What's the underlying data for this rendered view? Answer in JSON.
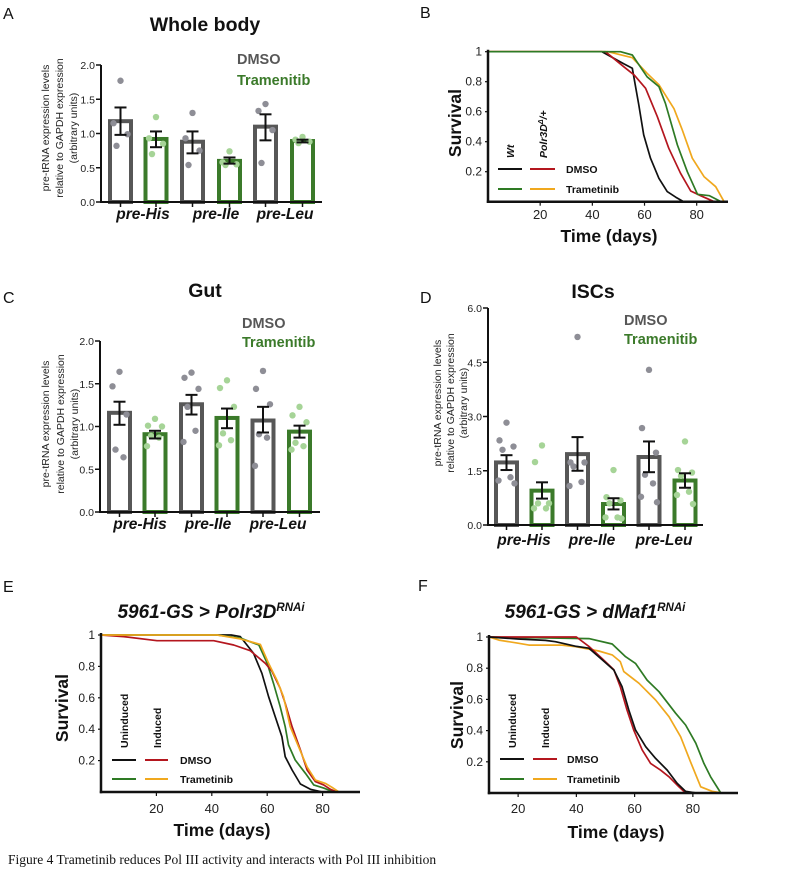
{
  "figure": {
    "caption": "Figure 4 Trametinib reduces Pol III activity and interacts with Pol III inhibition"
  },
  "chart_data": [
    {
      "panel": "A",
      "label": "A",
      "type": "bar",
      "title": "Whole body",
      "xlabel": "",
      "ylabel": [
        "pre-tRNA expression levels",
        "relative to GAPDH expression",
        "(arbitrary units)"
      ],
      "ylim": [
        0,
        2.0
      ],
      "yticks": [
        0,
        0.5,
        1.0,
        1.5,
        2.0
      ],
      "ytick_labels": [
        "0.0",
        "0.5",
        "1.0",
        "1.5",
        "2.0"
      ],
      "categories": [
        "pre-His",
        "pre-Ile",
        "pre-Leu"
      ],
      "legend_position": "top-right",
      "grid": false,
      "series": [
        {
          "name": "DMSO",
          "color": "#575757",
          "point_color": "#8e8e96",
          "values": [
            1.18,
            0.88,
            1.1
          ],
          "error_upper": [
            1.38,
            1.03,
            1.28
          ],
          "error_lower": [
            0.98,
            0.71,
            0.9
          ],
          "points": [
            [
              1.77,
              1.15,
              0.99,
              0.82
            ],
            [
              1.3,
              0.93,
              0.75,
              0.54
            ],
            [
              1.43,
              1.33,
              1.05,
              0.57
            ]
          ]
        },
        {
          "name": "Tramenitib",
          "color": "#3b7a2a",
          "point_color": "#a6d497",
          "values": [
            0.92,
            0.6,
            0.89
          ],
          "error_upper": [
            1.03,
            0.65,
            0.91
          ],
          "error_lower": [
            0.8,
            0.56,
            0.87
          ],
          "points": [
            [
              1.24,
              0.93,
              0.85,
              0.7
            ],
            [
              0.74,
              0.58,
              0.55,
              0.54
            ],
            [
              0.95,
              0.91,
              0.88,
              0.86
            ]
          ]
        }
      ]
    },
    {
      "panel": "B",
      "label": "B",
      "type": "line",
      "title": "",
      "title_superscript": "",
      "xlabel": "Time (days)",
      "ylabel": "Survival",
      "xlim": [
        0,
        92
      ],
      "ylim": [
        0,
        1
      ],
      "xticks": [
        20,
        40,
        60,
        80
      ],
      "xtick_labels": [
        "20",
        "40",
        "60",
        "80"
      ],
      "yticks": [
        0.2,
        0.4,
        0.6,
        0.8,
        1
      ],
      "ytick_labels": [
        "0.2",
        "0.4",
        "0.6",
        "0.8",
        "1"
      ],
      "grid": false,
      "legend": {
        "position": "bottom-left",
        "columns": [
          {
            "text": "Wt",
            "sup": "",
            "suffix": ""
          },
          {
            "text": "Polr3D",
            "sup": "Δ",
            "suffix": "/+"
          }
        ],
        "rows": [
          "DMSO",
          "Trametinib"
        ]
      },
      "series": [
        {
          "name": "Wt DMSO",
          "column": 0,
          "row": 0,
          "color": "#111111",
          "x": [
            0,
            43.7,
            52,
            55.3,
            57.8,
            59.7,
            62.3,
            65.5,
            68.7,
            72,
            75
          ],
          "y": [
            1,
            1,
            0.92,
            0.89,
            0.645,
            0.445,
            0.29,
            0.156,
            0.067,
            0.03,
            0
          ]
        },
        {
          "name": "Polr3D DMSO",
          "column": 1,
          "row": 0,
          "color": "#b4161e",
          "x": [
            0,
            45,
            52,
            56,
            60.4,
            64.9,
            69.3,
            73.8,
            77.7,
            81.5,
            86.7
          ],
          "y": [
            1,
            1,
            0.9,
            0.845,
            0.756,
            0.567,
            0.356,
            0.19,
            0.071,
            0.04,
            0
          ]
        },
        {
          "name": "Polr3D Trametinib",
          "column": 1,
          "row": 1,
          "color": "#f0a81e",
          "x": [
            0,
            46,
            55.3,
            61,
            65.5,
            71.3,
            74.5,
            78.3,
            82.8,
            87.3,
            90.5
          ],
          "y": [
            1,
            1,
            0.96,
            0.856,
            0.78,
            0.62,
            0.478,
            0.29,
            0.167,
            0.1,
            0
          ]
        },
        {
          "name": "Wt Trametinib",
          "column": 0,
          "row": 1,
          "color": "#2e7a24",
          "x": [
            0,
            50.8,
            55.3,
            61,
            65.5,
            68,
            72.6,
            76.4,
            80.3,
            84.9,
            89.4
          ],
          "y": [
            1,
            1,
            0.978,
            0.833,
            0.767,
            0.656,
            0.378,
            0.2,
            0.049,
            0.04,
            0
          ]
        }
      ]
    },
    {
      "panel": "C",
      "label": "C",
      "type": "bar",
      "title": "Gut",
      "xlabel": "",
      "ylabel": [
        "pre-tRNA expression levels",
        "relative to GAPDH expression",
        "(arbitrary units)"
      ],
      "ylim": [
        0,
        2.0
      ],
      "yticks": [
        0,
        0.5,
        1.0,
        1.5,
        2.0
      ],
      "ytick_labels": [
        "0.0",
        "0.5",
        "1.0",
        "1.5",
        "2.0"
      ],
      "categories": [
        "pre-His",
        "pre-Ile",
        "pre-Leu"
      ],
      "legend_position": "top-right",
      "grid": false,
      "series": [
        {
          "name": "DMSO",
          "color": "#575757",
          "point_color": "#8e8e96",
          "values": [
            1.16,
            1.26,
            1.07
          ],
          "error_upper": [
            1.29,
            1.37,
            1.23
          ],
          "error_lower": [
            1.02,
            1.14,
            0.93
          ],
          "points": [
            [
              1.64,
              1.47,
              1.14,
              0.73,
              0.64
            ],
            [
              1.63,
              1.57,
              1.44,
              1.23,
              0.95,
              0.82
            ],
            [
              1.65,
              1.44,
              1.26,
              0.91,
              0.87,
              0.54
            ]
          ]
        },
        {
          "name": "Tramenitib",
          "color": "#3b7a2a",
          "point_color": "#a6d497",
          "values": [
            0.91,
            1.1,
            0.94
          ],
          "error_upper": [
            0.95,
            1.21,
            1.01
          ],
          "error_lower": [
            0.86,
            0.98,
            0.87
          ],
          "points": [
            [
              1.09,
              1.01,
              1.0,
              0.89,
              0.87,
              0.77
            ],
            [
              1.54,
              1.45,
              1.23,
              0.92,
              0.84,
              0.78
            ],
            [
              1.23,
              1.13,
              1.05,
              0.81,
              0.77,
              0.73
            ]
          ]
        }
      ]
    },
    {
      "panel": "D",
      "label": "D",
      "type": "bar",
      "title": "ISCs",
      "xlabel": "",
      "ylabel": [
        "pre-tRNA expression levels",
        "relative to GAPDH expression",
        "(arbitrary units)"
      ],
      "ylim": [
        0,
        6.0
      ],
      "yticks": [
        0,
        1.5,
        3.0,
        4.5,
        6.0
      ],
      "ytick_labels": [
        "0.0",
        "1.5",
        "3.0",
        "4.5",
        "6.0"
      ],
      "categories": [
        "pre-His",
        "pre-Ile",
        "pre-Leu"
      ],
      "legend_position": "top-right",
      "grid": false,
      "series": [
        {
          "name": "DMSO",
          "color": "#575757",
          "point_color": "#8e8e96",
          "values": [
            1.73,
            1.96,
            1.88
          ],
          "error_upper": [
            1.93,
            2.43,
            2.31
          ],
          "error_lower": [
            1.52,
            1.5,
            1.46
          ],
          "points": [
            [
              2.83,
              2.34,
              2.17,
              2.08,
              1.32,
              1.23,
              1.15
            ],
            [
              5.2,
              1.73,
              1.73,
              1.62,
              1.19,
              1.08
            ],
            [
              4.29,
              2.68,
              2.0,
              1.39,
              1.15,
              0.78,
              0.63
            ]
          ]
        },
        {
          "name": "Tramenitib",
          "color": "#3b7a2a",
          "point_color": "#a6d497",
          "values": [
            0.95,
            0.58,
            1.23
          ],
          "error_upper": [
            1.18,
            0.74,
            1.43
          ],
          "error_lower": [
            0.73,
            0.43,
            1.03
          ],
          "points": [
            [
              2.2,
              1.74,
              0.6,
              0.6,
              0.46,
              0.46
            ],
            [
              1.52,
              0.77,
              0.68,
              0.6,
              0.21,
              0.21,
              0.18
            ],
            [
              2.31,
              1.52,
              1.45,
              1.36,
              0.92,
              0.83,
              0.58
            ]
          ]
        }
      ]
    },
    {
      "panel": "E",
      "label": "E",
      "type": "line",
      "title": "5961-GS > Polr3D",
      "title_superscript": "RNAi",
      "xlabel": "Time (days)",
      "ylabel": "Survival",
      "xlim": [
        0,
        93.5
      ],
      "ylim": [
        0,
        1
      ],
      "xticks": [
        20,
        40,
        60,
        80
      ],
      "xtick_labels": [
        "20",
        "40",
        "60",
        "80"
      ],
      "yticks": [
        0.2,
        0.4,
        0.6,
        0.8,
        1
      ],
      "ytick_labels": [
        "0.2",
        "0.4",
        "0.6",
        "0.8",
        "1"
      ],
      "grid": false,
      "legend": {
        "position": "bottom-left",
        "columns": [
          {
            "text": "Uninduced",
            "sup": "",
            "suffix": ""
          },
          {
            "text": "Induced",
            "sup": "",
            "suffix": ""
          }
        ],
        "rows": [
          "DMSO",
          "Trametinib"
        ]
      },
      "series": [
        {
          "name": "Uninduced DMSO",
          "column": 0,
          "row": 0,
          "color": "#111111",
          "x": [
            0,
            47,
            50.3,
            55.1,
            58.1,
            60.5,
            62.9,
            65.3,
            66.5,
            69,
            72,
            75.6,
            79.8
          ],
          "y": [
            1,
            1,
            0.99,
            0.883,
            0.756,
            0.607,
            0.48,
            0.352,
            0.225,
            0.14,
            0.051,
            0.017,
            0
          ]
        },
        {
          "name": "Uninduced Trametinib",
          "column": 0,
          "row": 1,
          "color": "#2e7a24",
          "x": [
            0,
            42,
            50.3,
            57,
            60,
            62.3,
            64.7,
            66.5,
            67.7,
            70.1,
            73.8,
            76.8,
            80.4,
            84
          ],
          "y": [
            1,
            1,
            0.98,
            0.936,
            0.82,
            0.69,
            0.543,
            0.416,
            0.3,
            0.204,
            0.119,
            0.045,
            0.025,
            0
          ]
        },
        {
          "name": "Induced DMSO",
          "column": 1,
          "row": 0,
          "color": "#b4161e",
          "x": [
            0,
            8.2,
            20.2,
            40.7,
            47.9,
            53.9,
            59.3,
            61.7,
            64.7,
            66.5,
            69,
            72,
            74.4,
            77.4,
            80.4,
            82.8,
            85.2
          ],
          "y": [
            1,
            0.99,
            0.964,
            0.964,
            0.936,
            0.9,
            0.82,
            0.77,
            0.66,
            0.565,
            0.416,
            0.268,
            0.14,
            0.066,
            0.045,
            0.017,
            0
          ]
        },
        {
          "name": "Induced Trametinib",
          "column": 1,
          "row": 1,
          "color": "#f0a81e",
          "x": [
            0,
            42,
            50.3,
            57.5,
            60.5,
            63.5,
            65.9,
            68.3,
            71.3,
            74.4,
            77.4,
            81,
            83.4,
            85.9,
            92
          ],
          "y": [
            1,
            1,
            0.975,
            0.94,
            0.82,
            0.713,
            0.607,
            0.416,
            0.289,
            0.16,
            0.076,
            0.055,
            0.03,
            0,
            0
          ]
        }
      ]
    },
    {
      "panel": "F",
      "label": "F",
      "type": "line",
      "title": "5961-GS > dMaf1",
      "title_superscript": "RNAi",
      "xlabel": "Time (days)",
      "ylabel": "Survival",
      "xlim": [
        10,
        95.5
      ],
      "ylim": [
        0,
        1
      ],
      "xticks": [
        20,
        40,
        60,
        80
      ],
      "xtick_labels": [
        "20",
        "40",
        "60",
        "80"
      ],
      "yticks": [
        0.2,
        0.4,
        0.6,
        0.8,
        1
      ],
      "ytick_labels": [
        "0.2",
        "0.4",
        "0.6",
        "0.8",
        "1"
      ],
      "grid": false,
      "legend": {
        "position": "bottom-left",
        "columns": [
          {
            "text": "Uninduced",
            "sup": "",
            "suffix": ""
          },
          {
            "text": "Induced",
            "sup": "",
            "suffix": ""
          }
        ],
        "rows": [
          "DMSO",
          "Trametinib"
        ]
      },
      "series": [
        {
          "name": "Uninduced Trametinib",
          "column": 0,
          "row": 1,
          "color": "#2e7a24",
          "x": [
            10,
            44.3,
            52.3,
            56.9,
            60.3,
            64.3,
            68.4,
            74.1,
            77.5,
            81,
            83.8,
            86.1,
            89.6
          ],
          "y": [
            1,
            0.99,
            0.955,
            0.874,
            0.831,
            0.724,
            0.649,
            0.511,
            0.436,
            0.319,
            0.19,
            0.104,
            0
          ]
        },
        {
          "name": "Induced Trametinib",
          "column": 1,
          "row": 1,
          "color": "#f0a81e",
          "x": [
            10,
            13.4,
            20,
            23.7,
            35.1,
            40,
            47.7,
            52.3,
            55.1,
            56.3,
            61.5,
            67.2,
            71.8,
            75.8,
            79.2,
            82.7,
            86.7,
            89.9
          ],
          "y": [
            1,
            0.98,
            0.96,
            0.948,
            0.948,
            0.937,
            0.91,
            0.885,
            0.842,
            0.778,
            0.703,
            0.596,
            0.489,
            0.361,
            0.2,
            0.04,
            0.01,
            0
          ]
        },
        {
          "name": "Induced DMSO",
          "column": 1,
          "row": 0,
          "color": "#b4161e",
          "x": [
            10,
            40,
            44.3,
            48.9,
            52.9,
            55.1,
            57.4,
            59.7,
            62.6,
            65.5,
            68.9,
            71.8,
            75.2,
            77.5
          ],
          "y": [
            1,
            1,
            0.94,
            0.86,
            0.79,
            0.681,
            0.532,
            0.404,
            0.276,
            0.19,
            0.147,
            0.104,
            0.04,
            0
          ]
        },
        {
          "name": "Uninduced DMSO",
          "column": 0,
          "row": 0,
          "color": "#111111",
          "x": [
            10,
            20,
            29.4,
            32.8,
            35.1,
            40,
            44.3,
            48.9,
            52.9,
            55.7,
            58,
            60.3,
            63.8,
            67.2,
            71.2,
            74.6,
            77.5,
            81.1
          ],
          "y": [
            1,
            0.987,
            0.978,
            0.97,
            0.96,
            0.94,
            0.928,
            0.853,
            0.788,
            0.681,
            0.532,
            0.404,
            0.297,
            0.222,
            0.147,
            0.062,
            0.01,
            0
          ]
        }
      ]
    }
  ]
}
